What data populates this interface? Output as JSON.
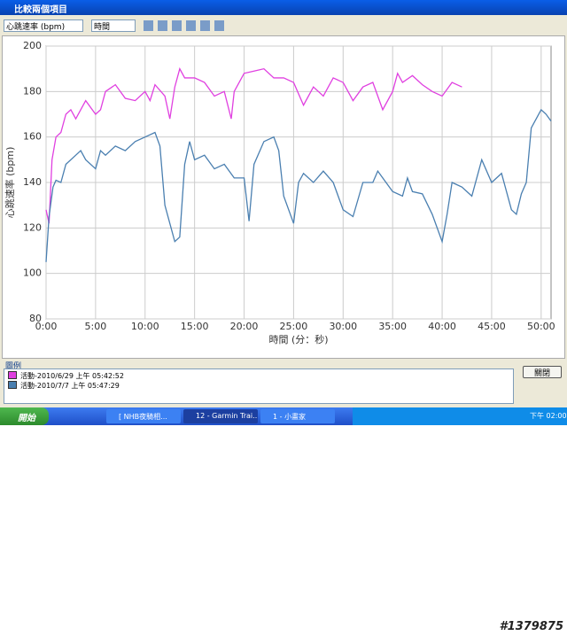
{
  "window": {
    "title": "比較兩個項目",
    "metric_select": "心跳速率 (bpm)",
    "axis_select": "時間",
    "legend_title": "圖例",
    "close_button": "關閉"
  },
  "taskbar": {
    "start": "開始",
    "items": [
      "[ NHB夜騎相...",
      "12 - Garmin Trai...",
      "1 - 小畫家"
    ],
    "clock": "下午 02:00"
  },
  "watermark": "#1379875",
  "chart_data": {
    "type": "line",
    "x_label": "時間 (分：秒)",
    "y_label": "心跳速率 (bpm)",
    "xlim": [
      0,
      51
    ],
    "ylim": [
      80,
      200
    ],
    "xticks": [
      {
        "value": 0,
        "label": "0:00"
      },
      {
        "value": 5,
        "label": "5:00"
      },
      {
        "value": 10,
        "label": "10:00"
      },
      {
        "value": 15,
        "label": "15:00"
      },
      {
        "value": 20,
        "label": "20:00"
      },
      {
        "value": 25,
        "label": "25:00"
      },
      {
        "value": 30,
        "label": "30:00"
      },
      {
        "value": 35,
        "label": "35:00"
      },
      {
        "value": 40,
        "label": "40:00"
      },
      {
        "value": 45,
        "label": "45:00"
      },
      {
        "value": 50,
        "label": "50:00"
      }
    ],
    "yticks": [
      80,
      100,
      120,
      140,
      160,
      180,
      200
    ],
    "grid": true,
    "series": [
      {
        "name": "活動-2010/6/29 上午 05:42:52",
        "color": "#e040e0",
        "x": [
          0,
          0.3,
          0.6,
          1,
          1.5,
          2,
          2.5,
          3,
          4,
          5,
          5.5,
          6,
          7,
          8,
          9,
          10,
          10.5,
          11,
          12,
          12.5,
          13,
          13.5,
          14,
          15,
          16,
          17,
          18,
          18.7,
          19,
          20,
          21,
          22,
          23,
          24,
          25,
          26,
          27,
          28,
          29,
          30,
          31,
          32,
          33,
          34,
          35,
          35.5,
          36,
          37,
          38,
          39,
          40,
          41,
          42
        ],
        "values": [
          128,
          122,
          150,
          160,
          162,
          170,
          172,
          168,
          176,
          170,
          172,
          180,
          183,
          177,
          176,
          180,
          176,
          183,
          178,
          168,
          182,
          190,
          186,
          186,
          184,
          178,
          180,
          168,
          180,
          188,
          189,
          190,
          186,
          186,
          184,
          174,
          182,
          178,
          186,
          184,
          176,
          182,
          184,
          172,
          180,
          188,
          184,
          187,
          183,
          180,
          178,
          184,
          182
        ]
      },
      {
        "name": "活動-2010/7/7 上午 05:47:29",
        "color": "#4a7fb0",
        "x": [
          0,
          0.3,
          0.7,
          1,
          1.5,
          2,
          3,
          3.5,
          4,
          5,
          5.5,
          6,
          7,
          8,
          9,
          10,
          11,
          11.5,
          12,
          13,
          13.5,
          14,
          14.5,
          15,
          16,
          17,
          18,
          19,
          20,
          20.5,
          21,
          22,
          23,
          23.5,
          24,
          25,
          25.5,
          26,
          27,
          28,
          29,
          30,
          31,
          32,
          33,
          33.5,
          34,
          35,
          36,
          36.5,
          37,
          38,
          39,
          40,
          40.5,
          41,
          42,
          43,
          44,
          45,
          46,
          47,
          47.5,
          48,
          48.5,
          49,
          50,
          50.5,
          51
        ],
        "values": [
          105,
          125,
          138,
          141,
          140,
          148,
          152,
          154,
          150,
          146,
          154,
          152,
          156,
          154,
          158,
          160,
          162,
          156,
          130,
          114,
          116,
          148,
          158,
          150,
          152,
          146,
          148,
          142,
          142,
          123,
          148,
          158,
          160,
          154,
          134,
          122,
          140,
          144,
          140,
          145,
          140,
          128,
          125,
          140,
          140,
          145,
          142,
          136,
          134,
          142,
          136,
          135,
          126,
          114,
          126,
          140,
          138,
          134,
          150,
          140,
          144,
          128,
          126,
          135,
          140,
          164,
          172,
          170,
          167
        ]
      }
    ]
  }
}
